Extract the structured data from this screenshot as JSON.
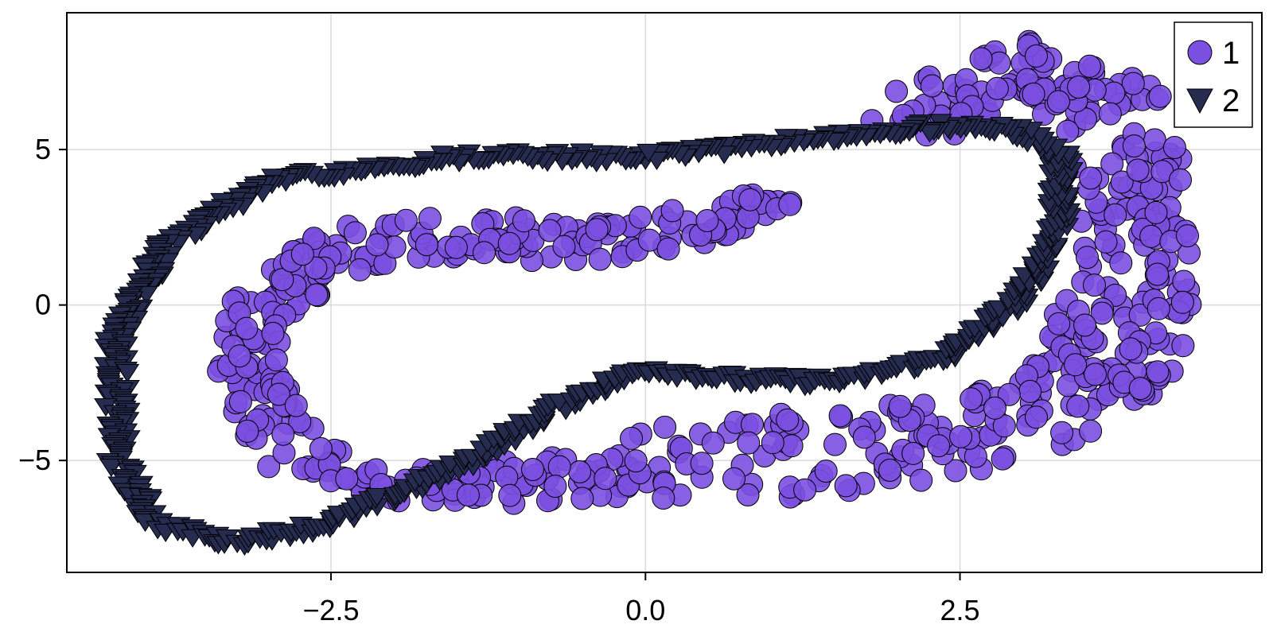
{
  "chart_data": {
    "type": "scatter",
    "title": "",
    "xlabel": "",
    "ylabel": "",
    "xlim": [
      -4.6,
      4.9
    ],
    "ylim": [
      -8.6,
      9.4
    ],
    "xticks": [
      -2.5,
      0.0,
      2.5
    ],
    "xtick_labels": [
      "−2.5",
      "0.0",
      "2.5"
    ],
    "yticks": [
      -5,
      0,
      5
    ],
    "ytick_labels": [
      "−5",
      "0",
      "5"
    ],
    "grid": true,
    "legend": {
      "position": "top-right",
      "entries": [
        "1",
        "2"
      ]
    },
    "series": [
      {
        "name": "1",
        "marker": "circle",
        "color": "#7b4fe0",
        "edge_color": "#000000",
        "generator": "band",
        "band_center": {
          "x": [
            1.2,
            -0.3,
            -1.4,
            -2.3,
            -2.8,
            -3.1,
            -3.2,
            -3.0,
            -2.8,
            -2.3,
            -1.6,
            -0.6,
            0.4,
            1.2,
            2.2,
            2.9,
            3.4,
            3.7,
            3.8,
            3.9,
            3.9,
            3.7,
            3.3,
            2.7,
            2.0
          ],
          "y": [
            3.3,
            2.0,
            2.2,
            1.8,
            0.8,
            -0.4,
            -1.8,
            -3.4,
            -4.8,
            -5.7,
            -5.9,
            -5.4,
            -5.0,
            -4.8,
            -4.4,
            -3.8,
            -2.9,
            -1.6,
            -0.2,
            1.5,
            3.8,
            6.2,
            7.6,
            7.3,
            5.6
          ],
          "w": [
            1.1,
            1.3,
            1.5,
            1.5,
            1.2,
            1.0,
            1.0,
            1.0,
            1.1,
            1.2,
            1.3,
            1.8,
            2.4,
            2.8,
            2.6,
            2.1,
            2.1,
            2.2,
            2.0,
            1.7,
            1.6,
            1.8,
            2.0,
            1.9,
            1.5
          ]
        },
        "count": 700
      },
      {
        "name": "2",
        "marker": "triangle-down",
        "color": "#262b50",
        "edge_color": "#000000",
        "generator": "curve",
        "curve": {
          "x": [
            0.0,
            -1.5,
            -3.0,
            -3.8,
            -4.2,
            -4.2,
            -3.9,
            -3.3,
            -2.5,
            -1.5,
            -0.6,
            0.0,
            0.8,
            1.6,
            2.4,
            3.0,
            3.3,
            3.3,
            3.0,
            2.4,
            1.6,
            0.8,
            0.0
          ],
          "y": [
            4.8,
            4.8,
            4.0,
            2.0,
            -1.0,
            -5.0,
            -7.0,
            -7.6,
            -7.0,
            -5.2,
            -3.0,
            -2.0,
            -2.4,
            -2.4,
            -1.6,
            0.3,
            2.8,
            4.8,
            5.6,
            5.8,
            5.5,
            5.1,
            4.8
          ]
        },
        "count": 620
      }
    ]
  }
}
